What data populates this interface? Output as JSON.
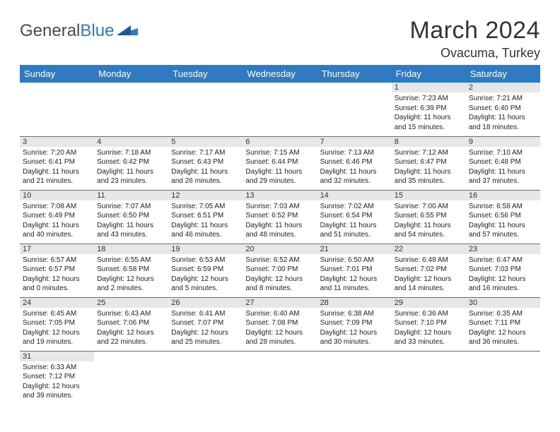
{
  "logo": {
    "text1": "General",
    "text2": "Blue"
  },
  "title": "March 2024",
  "location": "Ovacuma, Turkey",
  "colors": {
    "header_bg": "#2f7ac0",
    "header_fg": "#ffffff",
    "daynum_bg": "#e7e7e7",
    "border": "#2f7ac0"
  },
  "day_names": [
    "Sunday",
    "Monday",
    "Tuesday",
    "Wednesday",
    "Thursday",
    "Friday",
    "Saturday"
  ],
  "weeks": [
    [
      null,
      null,
      null,
      null,
      null,
      {
        "n": "1",
        "sr": "7:23 AM",
        "ss": "6:39 PM",
        "dl": "11 hours and 15 minutes."
      },
      {
        "n": "2",
        "sr": "7:21 AM",
        "ss": "6:40 PM",
        "dl": "11 hours and 18 minutes."
      }
    ],
    [
      {
        "n": "3",
        "sr": "7:20 AM",
        "ss": "6:41 PM",
        "dl": "11 hours and 21 minutes."
      },
      {
        "n": "4",
        "sr": "7:18 AM",
        "ss": "6:42 PM",
        "dl": "11 hours and 23 minutes."
      },
      {
        "n": "5",
        "sr": "7:17 AM",
        "ss": "6:43 PM",
        "dl": "11 hours and 26 minutes."
      },
      {
        "n": "6",
        "sr": "7:15 AM",
        "ss": "6:44 PM",
        "dl": "11 hours and 29 minutes."
      },
      {
        "n": "7",
        "sr": "7:13 AM",
        "ss": "6:46 PM",
        "dl": "11 hours and 32 minutes."
      },
      {
        "n": "8",
        "sr": "7:12 AM",
        "ss": "6:47 PM",
        "dl": "11 hours and 35 minutes."
      },
      {
        "n": "9",
        "sr": "7:10 AM",
        "ss": "6:48 PM",
        "dl": "11 hours and 37 minutes."
      }
    ],
    [
      {
        "n": "10",
        "sr": "7:08 AM",
        "ss": "6:49 PM",
        "dl": "11 hours and 40 minutes."
      },
      {
        "n": "11",
        "sr": "7:07 AM",
        "ss": "6:50 PM",
        "dl": "11 hours and 43 minutes."
      },
      {
        "n": "12",
        "sr": "7:05 AM",
        "ss": "6:51 PM",
        "dl": "11 hours and 46 minutes."
      },
      {
        "n": "13",
        "sr": "7:03 AM",
        "ss": "6:52 PM",
        "dl": "11 hours and 48 minutes."
      },
      {
        "n": "14",
        "sr": "7:02 AM",
        "ss": "6:54 PM",
        "dl": "11 hours and 51 minutes."
      },
      {
        "n": "15",
        "sr": "7:00 AM",
        "ss": "6:55 PM",
        "dl": "11 hours and 54 minutes."
      },
      {
        "n": "16",
        "sr": "6:58 AM",
        "ss": "6:56 PM",
        "dl": "11 hours and 57 minutes."
      }
    ],
    [
      {
        "n": "17",
        "sr": "6:57 AM",
        "ss": "6:57 PM",
        "dl": "12 hours and 0 minutes."
      },
      {
        "n": "18",
        "sr": "6:55 AM",
        "ss": "6:58 PM",
        "dl": "12 hours and 2 minutes."
      },
      {
        "n": "19",
        "sr": "6:53 AM",
        "ss": "6:59 PM",
        "dl": "12 hours and 5 minutes."
      },
      {
        "n": "20",
        "sr": "6:52 AM",
        "ss": "7:00 PM",
        "dl": "12 hours and 8 minutes."
      },
      {
        "n": "21",
        "sr": "6:50 AM",
        "ss": "7:01 PM",
        "dl": "12 hours and 11 minutes."
      },
      {
        "n": "22",
        "sr": "6:48 AM",
        "ss": "7:02 PM",
        "dl": "12 hours and 14 minutes."
      },
      {
        "n": "23",
        "sr": "6:47 AM",
        "ss": "7:03 PM",
        "dl": "12 hours and 16 minutes."
      }
    ],
    [
      {
        "n": "24",
        "sr": "6:45 AM",
        "ss": "7:05 PM",
        "dl": "12 hours and 19 minutes."
      },
      {
        "n": "25",
        "sr": "6:43 AM",
        "ss": "7:06 PM",
        "dl": "12 hours and 22 minutes."
      },
      {
        "n": "26",
        "sr": "6:41 AM",
        "ss": "7:07 PM",
        "dl": "12 hours and 25 minutes."
      },
      {
        "n": "27",
        "sr": "6:40 AM",
        "ss": "7:08 PM",
        "dl": "12 hours and 28 minutes."
      },
      {
        "n": "28",
        "sr": "6:38 AM",
        "ss": "7:09 PM",
        "dl": "12 hours and 30 minutes."
      },
      {
        "n": "29",
        "sr": "6:36 AM",
        "ss": "7:10 PM",
        "dl": "12 hours and 33 minutes."
      },
      {
        "n": "30",
        "sr": "6:35 AM",
        "ss": "7:11 PM",
        "dl": "12 hours and 36 minutes."
      }
    ],
    [
      {
        "n": "31",
        "sr": "6:33 AM",
        "ss": "7:12 PM",
        "dl": "12 hours and 39 minutes."
      },
      null,
      null,
      null,
      null,
      null,
      null
    ]
  ],
  "labels": {
    "sunrise": "Sunrise:",
    "sunset": "Sunset:",
    "daylight": "Daylight:"
  }
}
